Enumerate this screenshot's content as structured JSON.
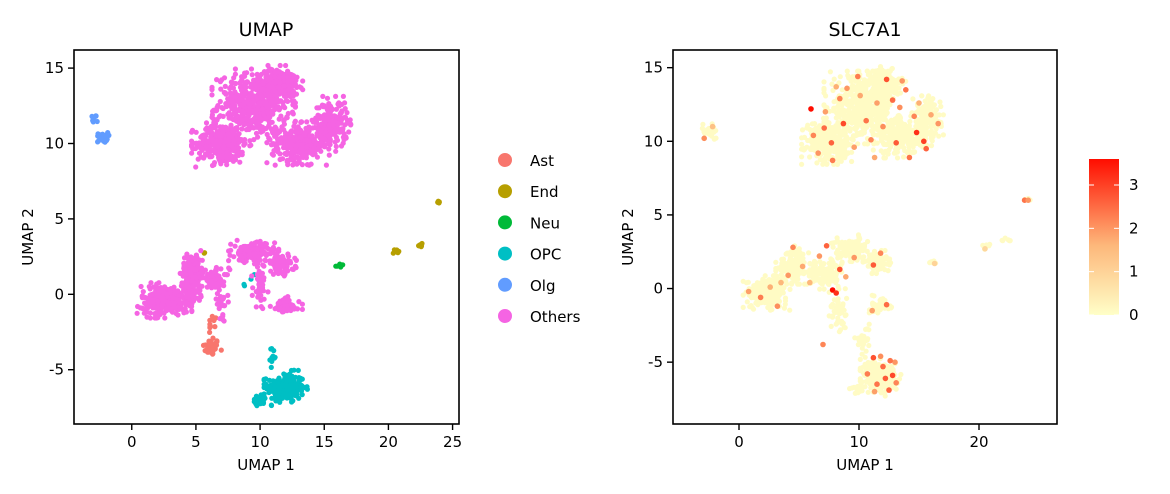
{
  "chart_data": [
    {
      "type": "scatter",
      "title": "UMAP",
      "xlabel": "UMAP 1",
      "ylabel": "UMAP 2",
      "xlim": [
        -4.5,
        25.5
      ],
      "ylim": [
        -8.6,
        16.2
      ],
      "xticks": [
        0,
        5,
        10,
        15,
        20,
        25
      ],
      "yticks": [
        -5,
        0,
        5,
        10,
        15
      ],
      "grid": false,
      "legend": "right",
      "series": [
        {
          "name": "Ast",
          "color": "#F8766D",
          "clusters": [
            {
              "cx": 6.2,
              "cy": -3.5,
              "rx": 0.6,
              "ry": 0.5,
              "n": 40
            },
            {
              "cx": 6.3,
              "cy": -2.2,
              "rx": 0.3,
              "ry": 0.8,
              "n": 12
            }
          ]
        },
        {
          "name": "End",
          "color": "#B79F00",
          "clusters": [
            {
              "cx": 24.0,
              "cy": 6.1,
              "rx": 0.15,
              "ry": 0.1,
              "n": 5
            },
            {
              "cx": 22.5,
              "cy": 3.3,
              "rx": 0.35,
              "ry": 0.15,
              "n": 7
            },
            {
              "cx": 20.6,
              "cy": 2.8,
              "rx": 0.3,
              "ry": 0.2,
              "n": 7
            },
            {
              "cx": 5.6,
              "cy": 2.8,
              "rx": 0.1,
              "ry": 0.1,
              "n": 2
            }
          ]
        },
        {
          "name": "Neu",
          "color": "#00BA38",
          "clusters": [
            {
              "cx": 16.2,
              "cy": 1.9,
              "rx": 0.3,
              "ry": 0.15,
              "n": 7
            }
          ]
        },
        {
          "name": "OPC",
          "color": "#00BFC4",
          "clusters": [
            {
              "cx": 12.0,
              "cy": -6.2,
              "rx": 1.3,
              "ry": 0.9,
              "n": 220
            },
            {
              "cx": 10.0,
              "cy": -7.0,
              "rx": 0.6,
              "ry": 0.3,
              "n": 25
            },
            {
              "cx": 11.0,
              "cy": -4.2,
              "rx": 0.2,
              "ry": 0.6,
              "n": 12
            },
            {
              "cx": 9.6,
              "cy": 1.2,
              "rx": 0.3,
              "ry": 0.3,
              "n": 3
            },
            {
              "cx": 8.8,
              "cy": 0.6,
              "rx": 0.1,
              "ry": 0.1,
              "n": 2
            }
          ]
        },
        {
          "name": "Olg",
          "color": "#619CFF",
          "clusters": [
            {
              "cx": -2.3,
              "cy": 10.4,
              "rx": 0.4,
              "ry": 0.3,
              "n": 25
            },
            {
              "cx": -3.0,
              "cy": 11.6,
              "rx": 0.3,
              "ry": 0.3,
              "n": 8
            }
          ]
        },
        {
          "name": "Others",
          "color": "#F564E3",
          "clusters": [
            {
              "cx": 9.5,
              "cy": 12.6,
              "rx": 2.5,
              "ry": 1.8,
              "n": 500
            },
            {
              "cx": 7.0,
              "cy": 10.0,
              "rx": 1.8,
              "ry": 1.2,
              "n": 320
            },
            {
              "cx": 13.0,
              "cy": 10.0,
              "rx": 1.9,
              "ry": 1.1,
              "n": 300
            },
            {
              "cx": 15.5,
              "cy": 11.3,
              "rx": 1.2,
              "ry": 1.4,
              "n": 200
            },
            {
              "cx": 11.5,
              "cy": 14.0,
              "rx": 1.4,
              "ry": 0.9,
              "n": 200
            },
            {
              "cx": 2.5,
              "cy": -0.4,
              "rx": 1.6,
              "ry": 0.9,
              "n": 260
            },
            {
              "cx": 4.8,
              "cy": 1.6,
              "rx": 0.8,
              "ry": 1.0,
              "n": 140
            },
            {
              "cx": 4.5,
              "cy": 0.0,
              "rx": 0.7,
              "ry": 0.9,
              "n": 80
            },
            {
              "cx": 9.5,
              "cy": 2.8,
              "rx": 1.5,
              "ry": 0.6,
              "n": 160
            },
            {
              "cx": 11.6,
              "cy": 2.0,
              "rx": 1.0,
              "ry": 0.6,
              "n": 80
            },
            {
              "cx": 10.0,
              "cy": 0.6,
              "rx": 0.5,
              "ry": 1.4,
              "n": 50
            },
            {
              "cx": 12.0,
              "cy": -0.8,
              "rx": 1.0,
              "ry": 0.5,
              "n": 60
            },
            {
              "cx": 6.5,
              "cy": 1.0,
              "rx": 1.0,
              "ry": 0.6,
              "n": 60
            },
            {
              "cx": 7.0,
              "cy": -0.6,
              "rx": 0.4,
              "ry": 0.9,
              "n": 25
            }
          ]
        }
      ]
    },
    {
      "type": "scatter",
      "title": "SLC7A1",
      "xlabel": "UMAP 1",
      "ylabel": "UMAP 2",
      "xlim": [
        -5.5,
        26.5
      ],
      "ylim": [
        -9.2,
        16.2
      ],
      "xticks": [
        0,
        10,
        20
      ],
      "yticks": [
        -5,
        0,
        5,
        10,
        15
      ],
      "grid": false,
      "colorbar": {
        "min": 0,
        "max": 3.6,
        "ticks": [
          0,
          1,
          2,
          3
        ],
        "low_color": "#FFFFC8",
        "mid_color": "#FDB77A",
        "high_color": "#FF0D00",
        "position": "right"
      },
      "background_color": "#FFFBC4",
      "clusters": [
        {
          "cx": 10.2,
          "cy": 12.3,
          "rx": 2.4,
          "ry": 1.9,
          "n": 450
        },
        {
          "cx": 7.3,
          "cy": 10.0,
          "rx": 1.6,
          "ry": 1.2,
          "n": 260
        },
        {
          "cx": 13.4,
          "cy": 10.3,
          "rx": 1.7,
          "ry": 1.1,
          "n": 260
        },
        {
          "cx": 15.6,
          "cy": 11.4,
          "rx": 1.1,
          "ry": 1.3,
          "n": 160
        },
        {
          "cx": 12.2,
          "cy": 13.9,
          "rx": 1.3,
          "ry": 0.9,
          "n": 160
        },
        {
          "cx": 2.3,
          "cy": -0.3,
          "rx": 1.5,
          "ry": 0.9,
          "n": 200
        },
        {
          "cx": 4.5,
          "cy": 1.6,
          "rx": 1.1,
          "ry": 1.0,
          "n": 140
        },
        {
          "cx": 7.0,
          "cy": 1.0,
          "rx": 1.2,
          "ry": 0.8,
          "n": 120
        },
        {
          "cx": 9.4,
          "cy": 2.6,
          "rx": 1.4,
          "ry": 0.8,
          "n": 120
        },
        {
          "cx": 11.5,
          "cy": 1.8,
          "rx": 0.9,
          "ry": 0.6,
          "n": 70
        },
        {
          "cx": 8.3,
          "cy": -1.7,
          "rx": 0.6,
          "ry": 1.3,
          "n": 50
        },
        {
          "cx": 11.9,
          "cy": -1.1,
          "rx": 0.8,
          "ry": 0.5,
          "n": 50
        },
        {
          "cx": 10.3,
          "cy": -3.5,
          "rx": 0.5,
          "ry": 0.9,
          "n": 30
        },
        {
          "cx": 11.8,
          "cy": -6.0,
          "rx": 1.3,
          "ry": 1.0,
          "n": 200
        },
        {
          "cx": 10.0,
          "cy": -6.8,
          "rx": 0.6,
          "ry": 0.3,
          "n": 20
        },
        {
          "cx": -2.4,
          "cy": 10.7,
          "rx": 0.5,
          "ry": 0.6,
          "n": 25
        },
        {
          "cx": 24.0,
          "cy": 6.0,
          "rx": 0.2,
          "ry": 0.1,
          "n": 5
        },
        {
          "cx": 22.2,
          "cy": 3.3,
          "rx": 0.4,
          "ry": 0.2,
          "n": 6
        },
        {
          "cx": 20.5,
          "cy": 2.8,
          "rx": 0.3,
          "ry": 0.2,
          "n": 6
        },
        {
          "cx": 16.2,
          "cy": 1.8,
          "rx": 0.3,
          "ry": 0.15,
          "n": 6
        }
      ],
      "highlights": [
        {
          "x": 6.0,
          "y": 12.2,
          "v": 3.6
        },
        {
          "x": 7.1,
          "y": 10.9,
          "v": 2.5
        },
        {
          "x": 8.4,
          "y": 12.9,
          "v": 2.2
        },
        {
          "x": 9.0,
          "y": 13.6,
          "v": 2.0
        },
        {
          "x": 10.6,
          "y": 11.4,
          "v": 2.4
        },
        {
          "x": 11.5,
          "y": 12.6,
          "v": 1.9
        },
        {
          "x": 12.3,
          "y": 14.2,
          "v": 2.8
        },
        {
          "x": 13.4,
          "y": 12.3,
          "v": 2.1
        },
        {
          "x": 14.8,
          "y": 10.6,
          "v": 3.2
        },
        {
          "x": 15.6,
          "y": 9.5,
          "v": 2.6
        },
        {
          "x": 16.0,
          "y": 11.8,
          "v": 1.8
        },
        {
          "x": 6.6,
          "y": 9.2,
          "v": 2.0
        },
        {
          "x": 7.8,
          "y": 8.7,
          "v": 2.3
        },
        {
          "x": 9.6,
          "y": 9.6,
          "v": 1.9
        },
        {
          "x": 11.0,
          "y": 10.1,
          "v": 2.2
        },
        {
          "x": 13.1,
          "y": 9.9,
          "v": 2.7
        },
        {
          "x": 14.2,
          "y": 8.9,
          "v": 2.4
        },
        {
          "x": 15.0,
          "y": 12.6,
          "v": 1.7
        },
        {
          "x": 8.7,
          "y": 11.2,
          "v": 2.9
        },
        {
          "x": 10.1,
          "y": 13.1,
          "v": 1.8
        },
        {
          "x": 12.0,
          "y": 11.0,
          "v": 2.1
        },
        {
          "x": 13.9,
          "y": 13.5,
          "v": 2.4
        },
        {
          "x": 16.6,
          "y": 11.2,
          "v": 2.0
        },
        {
          "x": 7.2,
          "y": 12.0,
          "v": 1.9
        },
        {
          "x": 9.9,
          "y": 14.4,
          "v": 2.3
        },
        {
          "x": 12.8,
          "y": 12.8,
          "v": 2.5
        },
        {
          "x": 15.4,
          "y": 10.0,
          "v": 3.0
        },
        {
          "x": 6.2,
          "y": 10.4,
          "v": 2.2
        },
        {
          "x": 11.3,
          "y": 8.9,
          "v": 1.8
        },
        {
          "x": 14.6,
          "y": 11.7,
          "v": 2.2
        },
        {
          "x": 7.7,
          "y": 9.9,
          "v": 2.6
        },
        {
          "x": 8.1,
          "y": 13.7,
          "v": 1.7
        },
        {
          "x": 13.6,
          "y": 14.1,
          "v": 2.0
        },
        {
          "x": -2.9,
          "y": 10.2,
          "v": 2.1
        },
        {
          "x": -2.2,
          "y": 11.0,
          "v": 1.4
        },
        {
          "x": 4.5,
          "y": 2.8,
          "v": 2.2
        },
        {
          "x": 5.3,
          "y": 1.5,
          "v": 1.8
        },
        {
          "x": 3.5,
          "y": 0.4,
          "v": 1.6
        },
        {
          "x": 1.8,
          "y": -0.6,
          "v": 2.3
        },
        {
          "x": 0.8,
          "y": -0.2,
          "v": 1.9
        },
        {
          "x": 6.7,
          "y": 2.2,
          "v": 2.0
        },
        {
          "x": 7.3,
          "y": 2.9,
          "v": 2.6
        },
        {
          "x": 8.4,
          "y": 1.3,
          "v": 2.8
        },
        {
          "x": 7.8,
          "y": -0.1,
          "v": 3.6
        },
        {
          "x": 8.1,
          "y": -0.3,
          "v": 3.2
        },
        {
          "x": 9.6,
          "y": 2.1,
          "v": 2.0
        },
        {
          "x": 11.2,
          "y": 1.6,
          "v": 2.7
        },
        {
          "x": 11.8,
          "y": 2.4,
          "v": 2.2
        },
        {
          "x": 12.3,
          "y": -1.1,
          "v": 2.5
        },
        {
          "x": 11.1,
          "y": -1.5,
          "v": 1.9
        },
        {
          "x": 4.1,
          "y": 0.9,
          "v": 2.0
        },
        {
          "x": 2.6,
          "y": 0.1,
          "v": 1.7
        },
        {
          "x": 5.9,
          "y": 0.4,
          "v": 1.6
        },
        {
          "x": 7.0,
          "y": -3.8,
          "v": 2.2
        },
        {
          "x": 8.9,
          "y": 0.8,
          "v": 1.8
        },
        {
          "x": 3.2,
          "y": -1.2,
          "v": 2.1
        },
        {
          "x": 11.2,
          "y": -4.7,
          "v": 2.8
        },
        {
          "x": 12.0,
          "y": -5.3,
          "v": 2.5
        },
        {
          "x": 12.8,
          "y": -5.9,
          "v": 2.9
        },
        {
          "x": 11.5,
          "y": -6.5,
          "v": 2.4
        },
        {
          "x": 12.5,
          "y": -6.9,
          "v": 2.6
        },
        {
          "x": 13.1,
          "y": -6.4,
          "v": 2.2
        },
        {
          "x": 10.7,
          "y": -5.8,
          "v": 2.3
        },
        {
          "x": 11.8,
          "y": -4.6,
          "v": 2.1
        },
        {
          "x": 13.0,
          "y": -5.0,
          "v": 2.0
        },
        {
          "x": 11.3,
          "y": -7.0,
          "v": 1.9
        },
        {
          "x": 12.2,
          "y": -6.1,
          "v": 2.7
        },
        {
          "x": 12.6,
          "y": -4.9,
          "v": 2.4
        },
        {
          "x": 23.8,
          "y": 6.0,
          "v": 2.4
        },
        {
          "x": 24.1,
          "y": 6.0,
          "v": 2.0
        },
        {
          "x": 20.5,
          "y": 2.7,
          "v": 0.9
        },
        {
          "x": 16.3,
          "y": 1.7,
          "v": 1.0
        }
      ]
    }
  ]
}
